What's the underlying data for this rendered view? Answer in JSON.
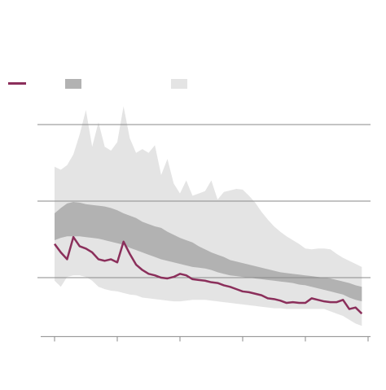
{
  "chart_data": {
    "type": "line",
    "x": [
      0,
      1,
      2,
      3,
      4,
      5,
      6,
      7,
      8,
      9,
      10,
      11,
      12,
      13,
      14,
      15,
      16,
      17,
      18,
      19,
      20,
      21,
      22,
      23,
      24,
      25,
      26,
      27,
      28,
      29,
      30,
      31,
      32,
      33,
      34,
      35,
      36,
      37,
      38,
      39,
      40,
      41,
      42,
      43,
      44,
      45,
      46,
      47,
      48,
      49
    ],
    "series": [
      {
        "color": "#8b2f5b",
        "values": [
          1.44,
          1.33,
          1.24,
          1.53,
          1.41,
          1.38,
          1.33,
          1.24,
          1.22,
          1.24,
          1.2,
          1.47,
          1.31,
          1.17,
          1.1,
          1.05,
          1.03,
          1.0,
          0.99,
          1.01,
          1.05,
          1.03,
          0.98,
          0.97,
          0.96,
          0.94,
          0.93,
          0.9,
          0.88,
          0.85,
          0.82,
          0.81,
          0.79,
          0.77,
          0.73,
          0.72,
          0.7,
          0.67,
          0.68,
          0.67,
          0.67,
          0.73,
          0.71,
          0.69,
          0.68,
          0.68,
          0.71,
          0.59,
          0.61,
          0.53
        ]
      }
    ],
    "bands": [
      {
        "color": "#e4e4e4",
        "high": [
          2.45,
          2.41,
          2.47,
          2.61,
          2.87,
          3.19,
          2.71,
          3.03,
          2.71,
          2.66,
          2.77,
          3.24,
          2.82,
          2.63,
          2.68,
          2.63,
          2.73,
          2.34,
          2.55,
          2.23,
          2.1,
          2.27,
          2.07,
          2.1,
          2.13,
          2.27,
          2.02,
          2.12,
          2.14,
          2.16,
          2.15,
          2.07,
          1.98,
          1.86,
          1.76,
          1.67,
          1.6,
          1.54,
          1.49,
          1.44,
          1.38,
          1.37,
          1.38,
          1.38,
          1.37,
          1.31,
          1.26,
          1.22,
          1.18,
          1.14
        ],
        "low": [
          0.96,
          0.88,
          1.01,
          1.03,
          1.03,
          1.01,
          0.96,
          0.88,
          0.85,
          0.83,
          0.82,
          0.8,
          0.78,
          0.77,
          0.74,
          0.73,
          0.72,
          0.71,
          0.7,
          0.69,
          0.69,
          0.7,
          0.71,
          0.71,
          0.71,
          0.7,
          0.69,
          0.68,
          0.67,
          0.66,
          0.65,
          0.64,
          0.63,
          0.62,
          0.61,
          0.6,
          0.6,
          0.59,
          0.59,
          0.59,
          0.59,
          0.59,
          0.59,
          0.59,
          0.56,
          0.53,
          0.5,
          0.45,
          0.4,
          0.37
        ]
      },
      {
        "color": "#b2b2b2",
        "high": [
          1.84,
          1.91,
          1.97,
          1.99,
          1.98,
          1.96,
          1.95,
          1.94,
          1.93,
          1.91,
          1.88,
          1.84,
          1.81,
          1.78,
          1.73,
          1.7,
          1.67,
          1.65,
          1.6,
          1.56,
          1.52,
          1.49,
          1.46,
          1.41,
          1.37,
          1.33,
          1.3,
          1.27,
          1.23,
          1.21,
          1.19,
          1.17,
          1.15,
          1.13,
          1.11,
          1.09,
          1.07,
          1.06,
          1.05,
          1.04,
          1.03,
          1.02,
          1.01,
          1.0,
          0.99,
          0.97,
          0.95,
          0.93,
          0.9,
          0.88
        ],
        "low": [
          1.49,
          1.52,
          1.54,
          1.54,
          1.54,
          1.53,
          1.52,
          1.51,
          1.49,
          1.47,
          1.45,
          1.43,
          1.39,
          1.36,
          1.33,
          1.3,
          1.27,
          1.24,
          1.22,
          1.2,
          1.18,
          1.16,
          1.14,
          1.13,
          1.12,
          1.1,
          1.07,
          1.05,
          1.03,
          1.02,
          1.01,
          1.0,
          0.99,
          0.98,
          0.97,
          0.96,
          0.95,
          0.94,
          0.93,
          0.91,
          0.9,
          0.88,
          0.86,
          0.84,
          0.82,
          0.8,
          0.78,
          0.74,
          0.71,
          0.69
        ]
      }
    ],
    "xlim": [
      0,
      50
    ],
    "xticks": [
      0,
      10,
      20,
      30,
      40,
      50
    ],
    "ylim": [
      0.23,
      3.5
    ],
    "yticks": [
      1,
      2,
      3
    ],
    "grid": true
  }
}
